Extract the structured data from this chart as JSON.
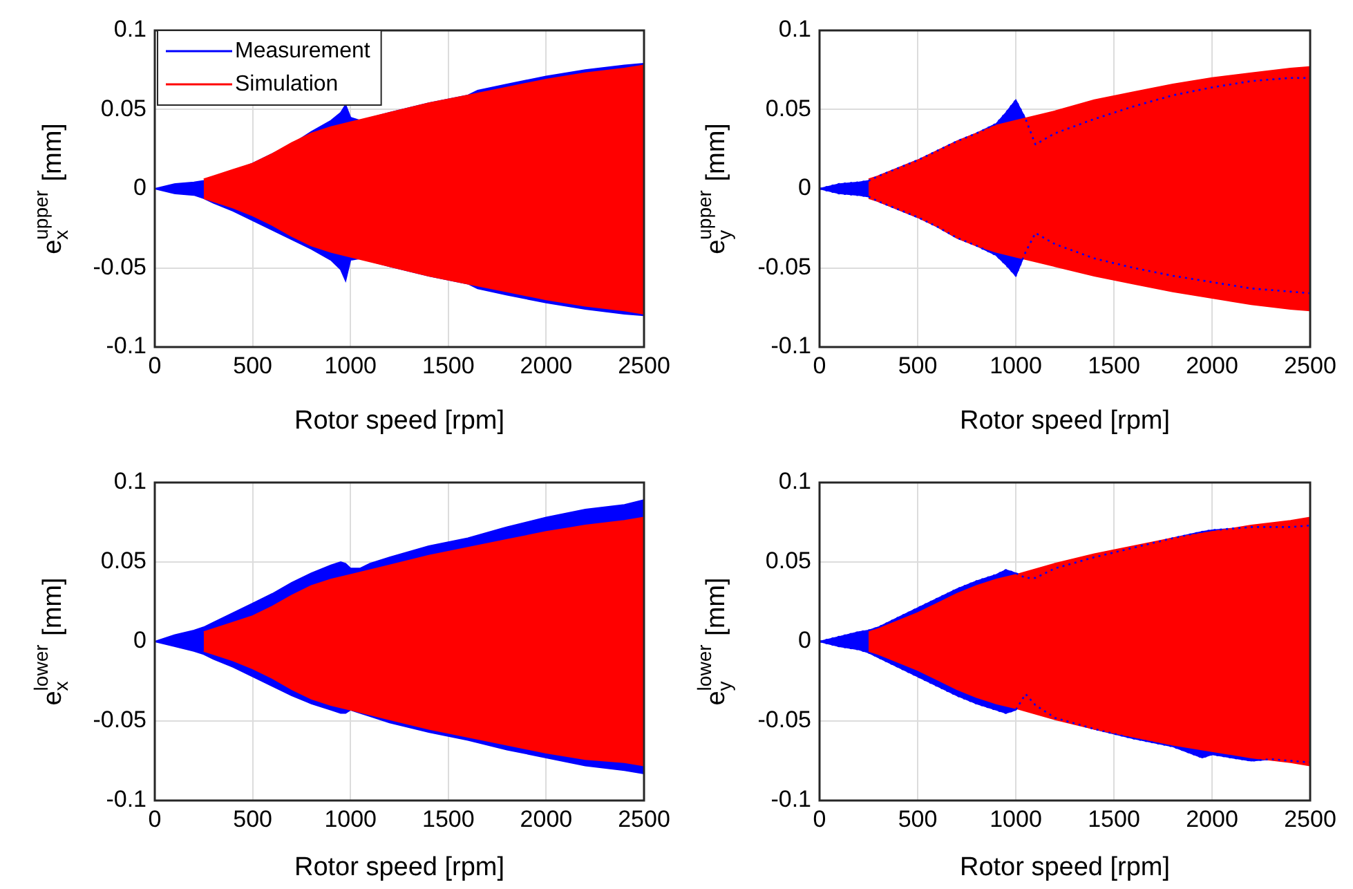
{
  "chart_data": [
    {
      "type": "area",
      "xlabel": "Rotor speed [rpm]",
      "ylabel": "e$_{x}$$^{upper}$ [mm]",
      "xlim": [
        0,
        2500
      ],
      "xticks": [
        0,
        500,
        1000,
        1500,
        2000,
        2500
      ],
      "ylim": [
        -0.1,
        0.1
      ],
      "yticks": [
        -0.1,
        -0.05,
        0,
        0.05,
        0.1
      ],
      "grid": true,
      "legend": "top left",
      "series": [
        {
          "name": "Measurement",
          "color": "#0000ff",
          "x": [
            0,
            100,
            200,
            250,
            300,
            400,
            500,
            600,
            700,
            800,
            900,
            950,
            975,
            1000,
            1050,
            1200,
            1400,
            1600,
            1650,
            1800,
            2000,
            2200,
            2400,
            2500
          ],
          "values": [
            0,
            0.003,
            0.004,
            0.005,
            0.007,
            0.011,
            0.016,
            0.022,
            0.028,
            0.036,
            0.043,
            0.048,
            0.053,
            0.045,
            0.043,
            0.048,
            0.054,
            0.059,
            0.062,
            0.066,
            0.071,
            0.075,
            0.078,
            0.079
          ]
        },
        {
          "color": "#0000ff",
          "x": [
            0,
            100,
            200,
            250,
            300,
            400,
            500,
            600,
            700,
            800,
            900,
            950,
            975,
            1000,
            1050,
            1200,
            1400,
            1600,
            1650,
            1800,
            2000,
            2200,
            2400,
            2500
          ],
          "values": [
            0,
            -0.003,
            -0.004,
            -0.006,
            -0.009,
            -0.014,
            -0.02,
            -0.026,
            -0.032,
            -0.038,
            -0.045,
            -0.051,
            -0.058,
            -0.045,
            -0.044,
            -0.049,
            -0.055,
            -0.06,
            -0.063,
            -0.067,
            -0.072,
            -0.076,
            -0.079,
            -0.08
          ]
        },
        {
          "name": "Simulation",
          "color": "#ff0000",
          "x": [
            250,
            300,
            400,
            500,
            600,
            700,
            800,
            900,
            1000,
            1200,
            1400,
            1600,
            1800,
            2000,
            2200,
            2400,
            2500
          ],
          "values": [
            0.006,
            0.008,
            0.012,
            0.016,
            0.022,
            0.029,
            0.035,
            0.039,
            0.042,
            0.048,
            0.054,
            0.059,
            0.064,
            0.069,
            0.073,
            0.076,
            0.078
          ]
        },
        {
          "color": "#ff0000",
          "x": [
            250,
            300,
            400,
            500,
            600,
            700,
            800,
            900,
            1000,
            1200,
            1400,
            1600,
            1800,
            2000,
            2200,
            2400,
            2500
          ],
          "values": [
            -0.006,
            -0.008,
            -0.012,
            -0.017,
            -0.023,
            -0.03,
            -0.036,
            -0.04,
            -0.043,
            -0.049,
            -0.055,
            -0.06,
            -0.065,
            -0.07,
            -0.074,
            -0.077,
            -0.079
          ]
        }
      ]
    },
    {
      "type": "area",
      "xlabel": "Rotor speed [rpm]",
      "ylabel": "e$_{y}$$^{upper}$ [mm]",
      "xlim": [
        0,
        2500
      ],
      "xticks": [
        0,
        500,
        1000,
        1500,
        2000,
        2500
      ],
      "ylim": [
        -0.1,
        0.1
      ],
      "yticks": [
        -0.1,
        -0.05,
        0,
        0.05,
        0.1
      ],
      "grid": true,
      "series": [
        {
          "color": "#0000ff",
          "line_style": "dotted",
          "x": [
            0,
            100,
            200,
            250,
            300,
            400,
            500,
            600,
            700,
            800,
            900,
            950,
            1000,
            1050,
            1100,
            1200,
            1400,
            1600,
            1800,
            2000,
            2200,
            2400,
            2500
          ],
          "values": [
            0,
            0.003,
            0.004,
            0.005,
            0.008,
            0.013,
            0.018,
            0.024,
            0.03,
            0.035,
            0.041,
            0.048,
            0.056,
            0.044,
            0.028,
            0.035,
            0.044,
            0.052,
            0.059,
            0.064,
            0.068,
            0.07,
            0.07
          ]
        },
        {
          "color": "#0000ff",
          "line_style": "dotted",
          "x": [
            0,
            100,
            200,
            250,
            300,
            400,
            500,
            600,
            700,
            800,
            900,
            950,
            1000,
            1050,
            1100,
            1200,
            1400,
            1600,
            1800,
            2000,
            2200,
            2400,
            2500
          ],
          "values": [
            0,
            -0.003,
            -0.004,
            -0.005,
            -0.008,
            -0.013,
            -0.018,
            -0.024,
            -0.031,
            -0.036,
            -0.042,
            -0.048,
            -0.055,
            -0.04,
            -0.028,
            -0.035,
            -0.044,
            -0.05,
            -0.055,
            -0.059,
            -0.063,
            -0.065,
            -0.066
          ]
        },
        {
          "color": "#ff0000",
          "x": [
            250,
            300,
            400,
            500,
            600,
            700,
            800,
            900,
            1000,
            1200,
            1400,
            1600,
            1800,
            2000,
            2200,
            2400,
            2500
          ],
          "values": [
            0.006,
            0.008,
            0.013,
            0.018,
            0.024,
            0.03,
            0.035,
            0.04,
            0.043,
            0.049,
            0.056,
            0.061,
            0.066,
            0.07,
            0.073,
            0.076,
            0.077
          ]
        },
        {
          "color": "#ff0000",
          "x": [
            250,
            300,
            400,
            500,
            600,
            700,
            800,
            900,
            1000,
            1200,
            1400,
            1600,
            1800,
            2000,
            2200,
            2400,
            2500
          ],
          "values": [
            -0.006,
            -0.008,
            -0.013,
            -0.018,
            -0.024,
            -0.031,
            -0.036,
            -0.04,
            -0.043,
            -0.049,
            -0.055,
            -0.06,
            -0.065,
            -0.069,
            -0.073,
            -0.076,
            -0.077
          ]
        }
      ]
    },
    {
      "type": "area",
      "xlabel": "Rotor speed [rpm]",
      "ylabel": "e$_{x}$$^{lower}$ [mm]",
      "xlim": [
        0,
        2500
      ],
      "xticks": [
        0,
        500,
        1000,
        1500,
        2000,
        2500
      ],
      "ylim": [
        -0.1,
        0.1
      ],
      "yticks": [
        -0.1,
        -0.05,
        0,
        0.05,
        0.1
      ],
      "grid": true,
      "series": [
        {
          "color": "#0000ff",
          "x": [
            0,
            100,
            200,
            250,
            300,
            400,
            500,
            600,
            700,
            800,
            900,
            950,
            975,
            1000,
            1050,
            1100,
            1200,
            1400,
            1600,
            1800,
            2000,
            2200,
            2400,
            2500
          ],
          "values": [
            0,
            0.004,
            0.007,
            0.009,
            0.012,
            0.018,
            0.024,
            0.03,
            0.037,
            0.043,
            0.048,
            0.05,
            0.049,
            0.046,
            0.046,
            0.049,
            0.053,
            0.06,
            0.065,
            0.072,
            0.078,
            0.083,
            0.086,
            0.089
          ]
        },
        {
          "color": "#0000ff",
          "x": [
            0,
            100,
            200,
            250,
            300,
            400,
            500,
            600,
            700,
            800,
            900,
            950,
            975,
            1000,
            1050,
            1100,
            1200,
            1400,
            1600,
            1800,
            2000,
            2200,
            2400,
            2500
          ],
          "values": [
            0,
            -0.003,
            -0.006,
            -0.008,
            -0.011,
            -0.016,
            -0.022,
            -0.028,
            -0.034,
            -0.039,
            -0.043,
            -0.045,
            -0.045,
            -0.043,
            -0.045,
            -0.047,
            -0.051,
            -0.057,
            -0.062,
            -0.068,
            -0.073,
            -0.078,
            -0.081,
            -0.083
          ]
        },
        {
          "color": "#ff0000",
          "x": [
            250,
            300,
            400,
            500,
            600,
            700,
            800,
            900,
            1000,
            1200,
            1400,
            1600,
            1800,
            2000,
            2200,
            2400,
            2500
          ],
          "values": [
            0.006,
            0.008,
            0.012,
            0.016,
            0.022,
            0.029,
            0.035,
            0.039,
            0.042,
            0.048,
            0.054,
            0.059,
            0.064,
            0.069,
            0.073,
            0.076,
            0.078
          ]
        },
        {
          "color": "#ff0000",
          "x": [
            250,
            300,
            400,
            500,
            600,
            700,
            800,
            900,
            1000,
            1200,
            1400,
            1600,
            1800,
            2000,
            2200,
            2400,
            2500
          ],
          "values": [
            -0.006,
            -0.008,
            -0.012,
            -0.017,
            -0.023,
            -0.03,
            -0.036,
            -0.04,
            -0.043,
            -0.049,
            -0.055,
            -0.06,
            -0.065,
            -0.07,
            -0.074,
            -0.076,
            -0.078
          ]
        }
      ]
    },
    {
      "type": "area",
      "xlabel": "Rotor speed [rpm]",
      "ylabel": "e$_{y}$$^{lower}$ [mm]",
      "xlim": [
        0,
        2500
      ],
      "xticks": [
        0,
        500,
        1000,
        1500,
        2000,
        2500
      ],
      "ylim": [
        -0.1,
        0.1
      ],
      "yticks": [
        -0.1,
        -0.05,
        0,
        0.05,
        0.1
      ],
      "grid": true,
      "series": [
        {
          "color": "#0000ff",
          "line_style": "dotted",
          "x": [
            0,
            100,
            200,
            250,
            300,
            400,
            500,
            600,
            700,
            800,
            900,
            950,
            1000,
            1050,
            1100,
            1200,
            1400,
            1600,
            1800,
            1950,
            2000,
            2100,
            2200,
            2300,
            2400,
            2500
          ],
          "values": [
            0,
            0.003,
            0.006,
            0.007,
            0.009,
            0.015,
            0.021,
            0.027,
            0.033,
            0.038,
            0.042,
            0.045,
            0.043,
            0.04,
            0.04,
            0.046,
            0.053,
            0.059,
            0.065,
            0.069,
            0.07,
            0.071,
            0.072,
            0.072,
            0.072,
            0.073
          ]
        },
        {
          "color": "#0000ff",
          "line_style": "dotted",
          "x": [
            0,
            100,
            200,
            250,
            300,
            400,
            500,
            600,
            700,
            800,
            900,
            950,
            1000,
            1050,
            1100,
            1200,
            1400,
            1600,
            1800,
            1950,
            2000,
            2100,
            2200,
            2300,
            2400,
            2500
          ],
          "values": [
            0,
            -0.003,
            -0.005,
            -0.007,
            -0.01,
            -0.016,
            -0.022,
            -0.028,
            -0.034,
            -0.039,
            -0.043,
            -0.045,
            -0.043,
            -0.033,
            -0.04,
            -0.048,
            -0.055,
            -0.061,
            -0.066,
            -0.073,
            -0.071,
            -0.073,
            -0.075,
            -0.074,
            -0.075,
            -0.076
          ]
        },
        {
          "color": "#ff0000",
          "x": [
            250,
            300,
            400,
            500,
            600,
            700,
            800,
            900,
            1000,
            1200,
            1400,
            1600,
            1800,
            2000,
            2200,
            2400,
            2500
          ],
          "values": [
            0.006,
            0.008,
            0.013,
            0.018,
            0.024,
            0.03,
            0.035,
            0.039,
            0.042,
            0.049,
            0.055,
            0.06,
            0.065,
            0.069,
            0.073,
            0.076,
            0.078
          ]
        },
        {
          "color": "#ff0000",
          "x": [
            250,
            300,
            400,
            500,
            600,
            700,
            800,
            900,
            1000,
            1200,
            1400,
            1600,
            1800,
            2000,
            2200,
            2400,
            2500
          ],
          "values": [
            -0.006,
            -0.008,
            -0.013,
            -0.018,
            -0.024,
            -0.03,
            -0.035,
            -0.039,
            -0.042,
            -0.049,
            -0.055,
            -0.06,
            -0.065,
            -0.069,
            -0.073,
            -0.076,
            -0.078
          ]
        }
      ]
    }
  ]
}
